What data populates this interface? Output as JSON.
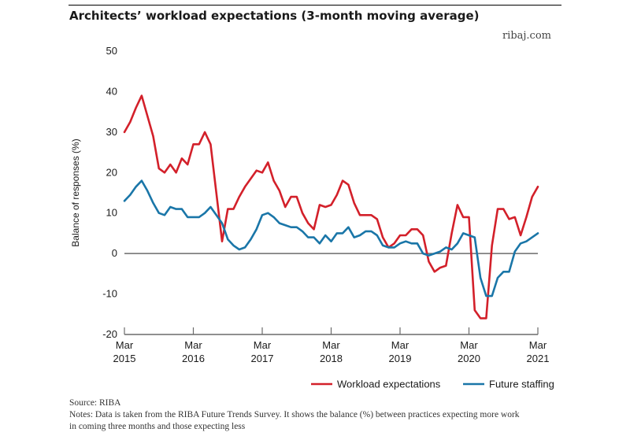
{
  "title": "Architects’ workload expectations (3-month moving average)",
  "site": "ribaj.com",
  "source": "Source: RIBA",
  "notes": [
    "Notes: Data is taken from the RIBA Future Trends Survey. It shows the balance (%) between practices expecting more work",
    "in coming three months and those expecting less"
  ],
  "chart_data": {
    "type": "line",
    "title": "Architects’ workload expectations (3-month moving average)",
    "ylabel": "Balance of responses (%)",
    "xlabel": "",
    "ylim": [
      -20,
      50
    ],
    "xlim": [
      0,
      72
    ],
    "y_ticks": [
      50,
      40,
      30,
      20,
      10,
      0,
      -10,
      -20
    ],
    "x_ticks": [
      {
        "month": "Mar",
        "year": "2015",
        "x": 0
      },
      {
        "month": "Mar",
        "year": "2016",
        "x": 12
      },
      {
        "month": "Mar",
        "year": "2017",
        "x": 24
      },
      {
        "month": "Mar",
        "year": "2018",
        "x": 36
      },
      {
        "month": "Mar",
        "year": "2019",
        "x": 48
      },
      {
        "month": "Mar",
        "year": "2020",
        "x": 60
      },
      {
        "month": "Mar",
        "year": "2021",
        "x": 72
      }
    ],
    "zero_line": true,
    "grid": false,
    "legend_position": "bottom-right",
    "series": [
      {
        "name": "Workload expectations",
        "color": "#d3202a",
        "x": [
          0,
          1,
          2,
          3,
          4,
          5,
          6,
          7,
          8,
          9,
          10,
          11,
          12,
          13,
          14,
          15,
          16,
          17,
          18,
          19,
          20,
          21,
          22,
          23,
          24,
          25,
          26,
          27,
          28,
          29,
          30,
          31,
          32,
          33,
          34,
          35,
          36,
          37,
          38,
          39,
          40,
          41,
          42,
          43,
          44,
          45,
          46,
          47,
          48,
          49,
          50,
          51,
          52,
          53,
          54,
          55,
          56,
          57,
          58,
          59,
          60,
          61,
          62,
          63,
          64,
          65,
          66,
          67,
          68,
          69,
          70,
          71,
          72
        ],
        "values": [
          30,
          32.5,
          36,
          39,
          34,
          29,
          21,
          20,
          22,
          20,
          23.5,
          22,
          27,
          27,
          30,
          27,
          15,
          3,
          11,
          11,
          14,
          16.5,
          18.5,
          20.5,
          20,
          22.5,
          18,
          15.5,
          11.5,
          14,
          14,
          10,
          7.5,
          6,
          12,
          11.5,
          12,
          14.5,
          18,
          17,
          12.5,
          9.5,
          9.5,
          9.5,
          8.5,
          4,
          1.5,
          2.5,
          4.5,
          4.5,
          6,
          6,
          4.5,
          -2,
          -4.5,
          -3.5,
          -3,
          5,
          12,
          9,
          9,
          -14,
          -16,
          -16,
          2,
          11,
          11,
          8.5,
          9,
          4.5,
          9,
          14,
          16.5
        ]
      },
      {
        "name": "Future staffing",
        "color": "#1a76a8",
        "x": [
          0,
          1,
          2,
          3,
          4,
          5,
          6,
          7,
          8,
          9,
          10,
          11,
          12,
          13,
          14,
          15,
          16,
          17,
          18,
          19,
          20,
          21,
          22,
          23,
          24,
          25,
          26,
          27,
          28,
          29,
          30,
          31,
          32,
          33,
          34,
          35,
          36,
          37,
          38,
          39,
          40,
          41,
          42,
          43,
          44,
          45,
          46,
          47,
          48,
          49,
          50,
          51,
          52,
          53,
          54,
          55,
          56,
          57,
          58,
          59,
          60,
          61,
          62,
          63,
          64,
          65,
          66,
          67,
          68,
          69,
          70,
          71,
          72
        ],
        "values": [
          13,
          14.5,
          16.5,
          18,
          15.5,
          12.5,
          10,
          9.5,
          11.5,
          11,
          11,
          9,
          9,
          9,
          10,
          11.5,
          9.5,
          7.5,
          3.5,
          2,
          1,
          1.5,
          3.5,
          6,
          9.5,
          10,
          9,
          7.5,
          7,
          6.5,
          6.5,
          5.5,
          4,
          4,
          2.5,
          4.5,
          3,
          5,
          5,
          6.5,
          4,
          4.5,
          5.5,
          5.5,
          4.5,
          2,
          1.5,
          1.5,
          2.5,
          3,
          2.5,
          2.5,
          0,
          -0.5,
          0,
          0.5,
          1.5,
          1,
          2.5,
          5,
          4.5,
          4,
          -6,
          -10.5,
          -10.5,
          -6,
          -4.5,
          -4.5,
          0.5,
          2.5,
          3,
          4,
          5
        ]
      }
    ]
  }
}
